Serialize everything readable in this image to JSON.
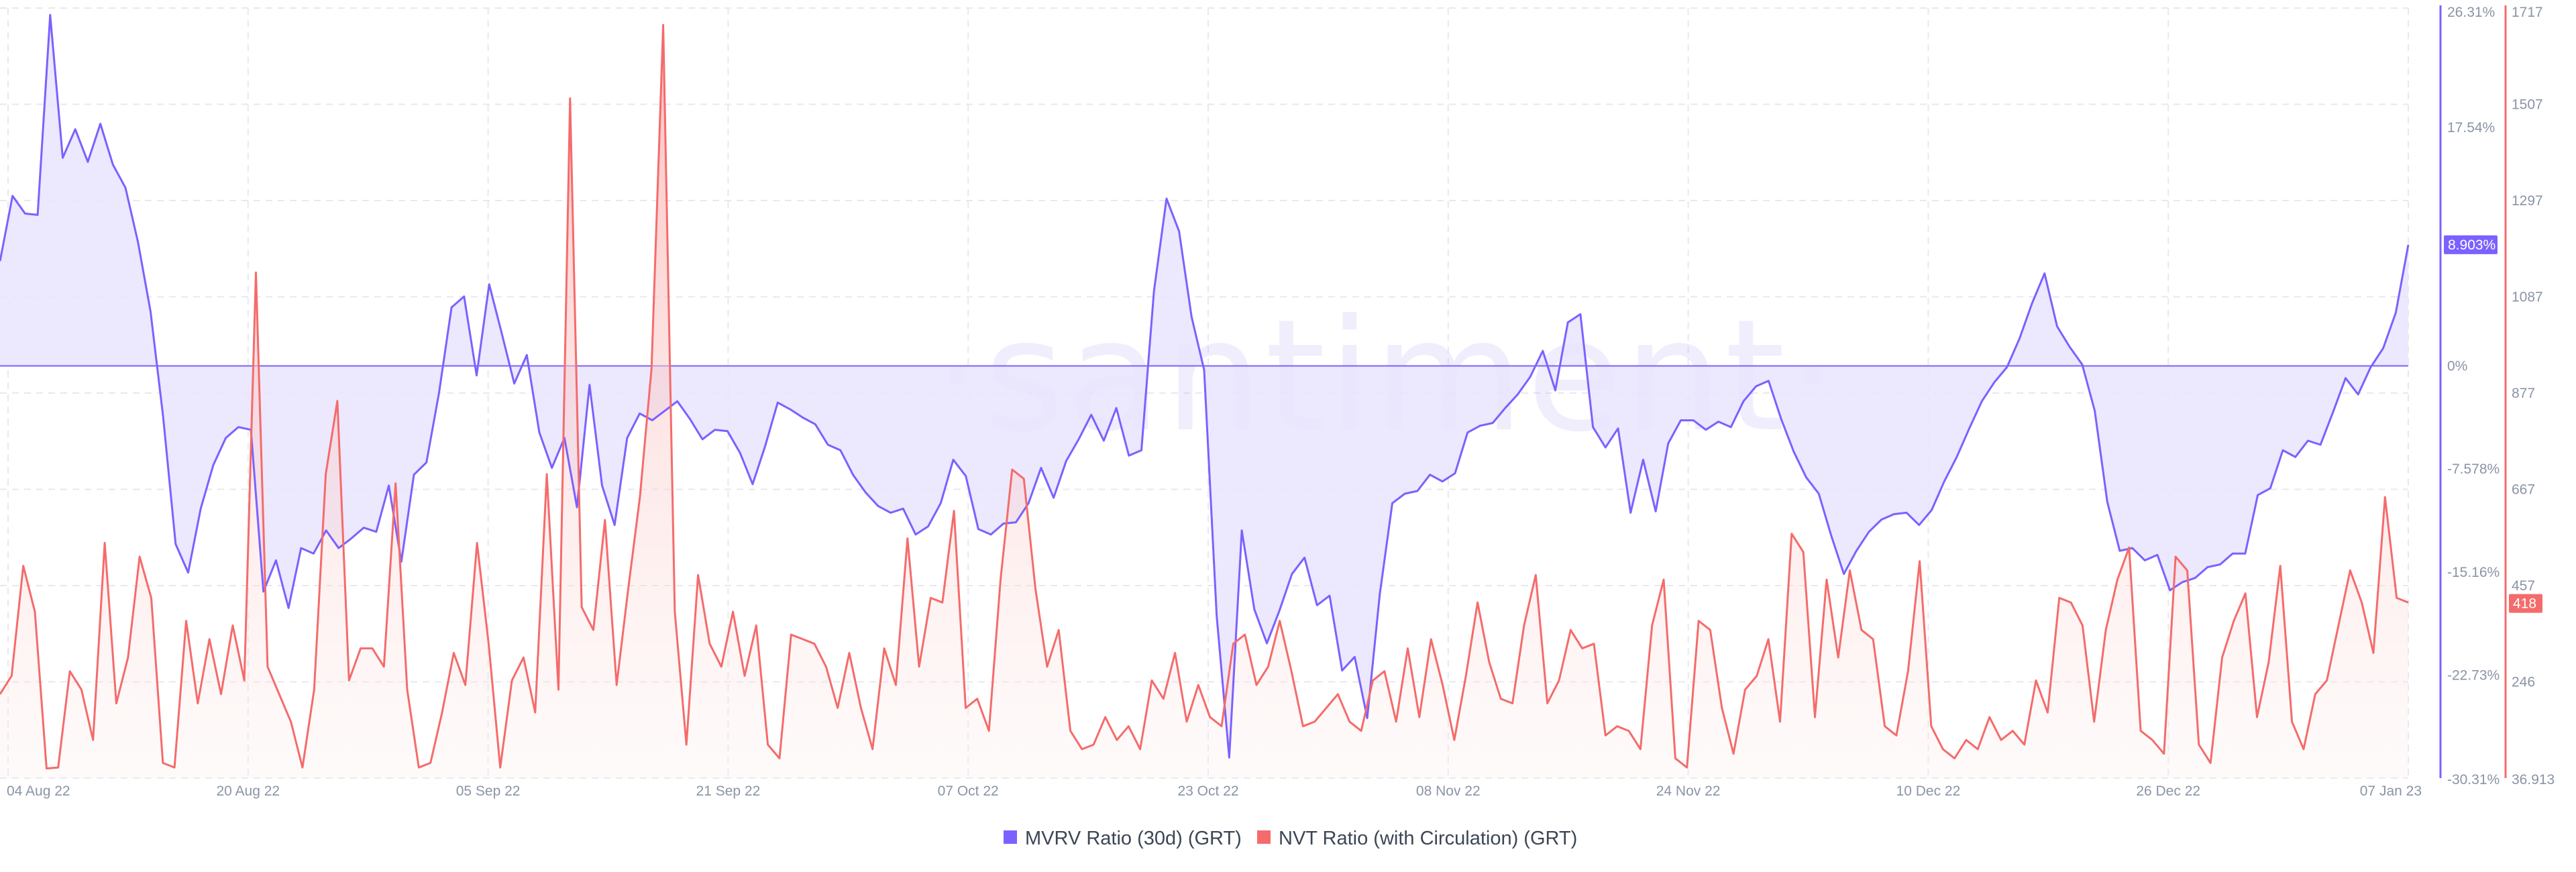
{
  "chart_data": {
    "type": "line",
    "watermark": "·santiment·",
    "x_ticks": [
      "04 Aug 22",
      "20 Aug 22",
      "05 Sep 22",
      "21 Sep 22",
      "07 Oct 22",
      "23 Oct 22",
      "08 Nov 22",
      "24 Nov 22",
      "10 Dec 22",
      "26 Dec 22",
      "07 Jan 23"
    ],
    "x_range": [
      "2022-08-04",
      "2023-01-07"
    ],
    "left_axis": {
      "min": -30.31,
      "max": 26.31,
      "ticks": [
        "26.31%",
        "17.54%",
        "8.903%",
        "0%",
        "-7.578%",
        "-15.16%",
        "-22.73%",
        "-30.31%"
      ]
    },
    "right_axis": {
      "min": 36.913,
      "max": 1717,
      "ticks": [
        "1717",
        "1507",
        "1297",
        "1087",
        "877",
        "667",
        "457",
        "246",
        "36.913"
      ]
    },
    "last_values": {
      "mvrv": "8.903%",
      "nvt": "418"
    },
    "grid": true,
    "legend_position": "bottom-center",
    "series": [
      {
        "name": "MVRV Ratio (30d) (GRT)",
        "color": "#7b61ff",
        "fill": "#e9e4fd",
        "axis": "left",
        "values": [
          7.7,
          12.5,
          11.2,
          11.1,
          25.8,
          15.3,
          17.4,
          15.0,
          17.8,
          14.8,
          13.1,
          9.1,
          4.0,
          -3.7,
          -13.1,
          -15.2,
          -10.5,
          -7.3,
          -5.3,
          -4.5,
          -4.7,
          -16.6,
          -14.3,
          -17.8,
          -13.4,
          -13.8,
          -12.1,
          -13.4,
          -12.7,
          -11.9,
          -12.2,
          -8.8,
          -14.4,
          -8.0,
          -7.1,
          -2.0,
          4.3,
          5.1,
          -0.7,
          6.0,
          2.4,
          -1.3,
          0.8,
          -4.9,
          -7.5,
          -5.3,
          -10.4,
          -1.4,
          -8.8,
          -11.7,
          -5.3,
          -3.5,
          -4.0,
          -3.3,
          -2.6,
          -3.9,
          -5.4,
          -4.7,
          -4.8,
          -6.4,
          -8.7,
          -5.9,
          -2.7,
          -3.2,
          -3.8,
          -4.3,
          -5.8,
          -6.2,
          -8.0,
          -9.3,
          -10.3,
          -10.8,
          -10.5,
          -12.4,
          -11.8,
          -10.1,
          -6.9,
          -8.1,
          -12.0,
          -12.4,
          -11.6,
          -11.5,
          -10.1,
          -7.5,
          -9.7,
          -7.0,
          -5.4,
          -3.6,
          -5.5,
          -3.1,
          -6.6,
          -6.2,
          5.5,
          12.3,
          9.9,
          3.6,
          -0.3,
          -18.4,
          -28.8,
          -12.1,
          -17.9,
          -20.4,
          -18.0,
          -15.3,
          -14.1,
          -17.6,
          -16.9,
          -22.4,
          -21.4,
          -25.9,
          -16.8,
          -10.1,
          -9.4,
          -9.2,
          -8.0,
          -8.5,
          -7.9,
          -4.9,
          -4.4,
          -4.2,
          -3.1,
          -2.1,
          -0.8,
          1.1,
          -1.8,
          3.2,
          3.8,
          -4.5,
          -6.0,
          -4.6,
          -10.8,
          -6.9,
          -10.7,
          -5.7,
          -4.0,
          -4.0,
          -4.7,
          -4.1,
          -4.5,
          -2.6,
          -1.5,
          -1.1,
          -3.9,
          -6.3,
          -8.2,
          -9.4,
          -12.5,
          -15.3,
          -13.6,
          -12.2,
          -11.3,
          -10.9,
          -10.8,
          -11.7,
          -10.6,
          -8.5,
          -6.7,
          -4.6,
          -2.6,
          -1.2,
          -0.1,
          2.0,
          4.6,
          6.8,
          2.9,
          1.4,
          0.1,
          -3.3,
          -10.0,
          -13.6,
          -13.4,
          -14.3,
          -13.9,
          -16.5,
          -15.9,
          -15.6,
          -14.8,
          -14.6,
          -13.8,
          -13.8,
          -9.5,
          -9.0,
          -6.2,
          -6.7,
          -5.5,
          -5.8,
          -3.4,
          -0.9,
          -2.1,
          -0.1,
          1.3,
          3.9,
          8.9
        ]
      },
      {
        "name": "NVT Ratio (with Circulation) (GRT)",
        "color": "#f56b6b",
        "fill": "#fdeceb",
        "axis": "right",
        "values": [
          220,
          260,
          500,
          400,
          58,
          60,
          270,
          230,
          120,
          550,
          200,
          300,
          520,
          430,
          70,
          60,
          380,
          200,
          340,
          220,
          370,
          250,
          1140,
          280,
          220,
          160,
          60,
          230,
          700,
          860,
          250,
          320,
          320,
          280,
          680,
          230,
          60,
          70,
          180,
          310,
          240,
          550,
          330,
          60,
          250,
          300,
          180,
          700,
          230,
          1520,
          410,
          360,
          600,
          240,
          450,
          650,
          930,
          1680,
          400,
          110,
          480,
          330,
          280,
          400,
          260,
          370,
          110,
          80,
          350,
          340,
          330,
          280,
          190,
          310,
          190,
          100,
          320,
          240,
          560,
          280,
          430,
          420,
          620,
          190,
          210,
          140,
          470,
          710,
          690,
          450,
          280,
          360,
          140,
          100,
          110,
          170,
          120,
          150,
          100,
          250,
          210,
          310,
          160,
          240,
          170,
          150,
          330,
          350,
          240,
          280,
          380,
          270,
          150,
          160,
          190,
          220,
          160,
          140,
          250,
          270,
          160,
          320,
          170,
          340,
          240,
          120,
          260,
          420,
          290,
          210,
          200,
          370,
          480,
          200,
          250,
          360,
          320,
          330,
          130,
          150,
          140,
          100,
          370,
          470,
          80,
          60,
          380,
          360,
          190,
          90,
          230,
          260,
          340,
          160,
          570,
          530,
          170,
          470,
          300,
          490,
          360,
          340,
          150,
          130,
          270,
          510,
          150,
          100,
          80,
          120,
          100,
          170,
          120,
          140,
          110,
          250,
          180,
          430,
          420,
          370,
          160,
          360,
          470,
          540,
          140,
          120,
          90,
          520,
          490,
          110,
          70,
          300,
          380,
          440,
          170,
          290,
          500,
          160,
          100,
          220,
          250,
          370,
          490,
          420,
          310,
          650,
          430,
          420
        ]
      }
    ]
  },
  "legend": [
    {
      "label": "MVRV Ratio (30d) (GRT)",
      "color": "#7b61ff"
    },
    {
      "label": "NVT Ratio (with Circulation) (GRT)",
      "color": "#f56b6b"
    }
  ]
}
